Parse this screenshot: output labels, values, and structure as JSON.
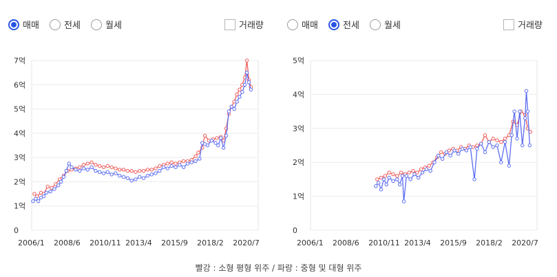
{
  "panels": [
    {
      "options": [
        {
          "label": "매매",
          "selected": true
        },
        {
          "label": "전세",
          "selected": false
        },
        {
          "label": "월세",
          "selected": false
        }
      ],
      "volume_label": "거래량"
    },
    {
      "options": [
        {
          "label": "매매",
          "selected": false
        },
        {
          "label": "전세",
          "selected": true
        },
        {
          "label": "월세",
          "selected": false
        }
      ],
      "volume_label": "거래량"
    }
  ],
  "caption": "빨강 : 소형 평형 위주 / 파랑 : 중형 및 대형 위주",
  "colors": {
    "red": "#ef5b5b",
    "blue": "#5b6cf2",
    "grid": "#ececec"
  },
  "chart_data": [
    {
      "type": "line",
      "x_ticks": [
        "2006/1",
        "2008/6",
        "2010/11",
        "2013/4",
        "2015/9",
        "2018/2",
        "2020/7"
      ],
      "y_ticks": [
        "0",
        "1억",
        "2억",
        "3억",
        "4억",
        "5억",
        "6억",
        "7억"
      ],
      "ylim": [
        0,
        7
      ],
      "xlim": [
        2006.0,
        2023.0
      ],
      "grid": true,
      "series": [
        {
          "color": "red",
          "points": [
            [
              2006.2,
              1.5
            ],
            [
              2006.4,
              1.4
            ],
            [
              2006.7,
              1.55
            ],
            [
              2006.9,
              1.5
            ],
            [
              2007.2,
              1.8
            ],
            [
              2007.5,
              1.75
            ],
            [
              2007.8,
              1.9
            ],
            [
              2008.1,
              2.1
            ],
            [
              2008.4,
              2.25
            ],
            [
              2008.7,
              2.45
            ],
            [
              2009.0,
              2.5
            ],
            [
              2009.3,
              2.55
            ],
            [
              2009.6,
              2.6
            ],
            [
              2009.9,
              2.7
            ],
            [
              2010.2,
              2.75
            ],
            [
              2010.5,
              2.8
            ],
            [
              2010.8,
              2.7
            ],
            [
              2011.1,
              2.65
            ],
            [
              2011.4,
              2.6
            ],
            [
              2011.7,
              2.65
            ],
            [
              2012.0,
              2.6
            ],
            [
              2012.3,
              2.55
            ],
            [
              2012.6,
              2.5
            ],
            [
              2012.9,
              2.5
            ],
            [
              2013.2,
              2.45
            ],
            [
              2013.5,
              2.45
            ],
            [
              2013.8,
              2.4
            ],
            [
              2014.1,
              2.45
            ],
            [
              2014.4,
              2.45
            ],
            [
              2014.7,
              2.5
            ],
            [
              2015.0,
              2.5
            ],
            [
              2015.3,
              2.55
            ],
            [
              2015.6,
              2.65
            ],
            [
              2015.9,
              2.7
            ],
            [
              2016.2,
              2.75
            ],
            [
              2016.5,
              2.8
            ],
            [
              2016.8,
              2.75
            ],
            [
              2017.1,
              2.8
            ],
            [
              2017.4,
              2.85
            ],
            [
              2017.7,
              2.85
            ],
            [
              2018.0,
              2.9
            ],
            [
              2018.3,
              3.05
            ],
            [
              2018.5,
              3.2
            ],
            [
              2018.8,
              3.4
            ],
            [
              2019.0,
              3.9
            ],
            [
              2019.3,
              3.7
            ],
            [
              2019.6,
              3.75
            ],
            [
              2019.9,
              3.8
            ],
            [
              2020.2,
              3.85
            ],
            [
              2020.4,
              3.7
            ],
            [
              2020.6,
              4.2
            ],
            [
              2020.8,
              4.8
            ],
            [
              2021.0,
              5.1
            ],
            [
              2021.2,
              5.3
            ],
            [
              2021.4,
              5.6
            ],
            [
              2021.6,
              5.8
            ],
            [
              2021.8,
              6.0
            ],
            [
              2022.0,
              6.3
            ],
            [
              2022.15,
              7.0
            ],
            [
              2022.3,
              6.2
            ],
            [
              2022.45,
              5.9
            ]
          ]
        },
        {
          "color": "blue",
          "points": [
            [
              2006.1,
              1.2
            ],
            [
              2006.3,
              1.3
            ],
            [
              2006.5,
              1.2
            ],
            [
              2006.7,
              1.35
            ],
            [
              2006.9,
              1.4
            ],
            [
              2007.1,
              1.55
            ],
            [
              2007.4,
              1.6
            ],
            [
              2007.7,
              1.7
            ],
            [
              2008.0,
              1.85
            ],
            [
              2008.2,
              2.0
            ],
            [
              2008.4,
              2.2
            ],
            [
              2008.6,
              2.45
            ],
            [
              2008.8,
              2.75
            ],
            [
              2009.0,
              2.6
            ],
            [
              2009.3,
              2.5
            ],
            [
              2009.6,
              2.45
            ],
            [
              2009.9,
              2.55
            ],
            [
              2010.2,
              2.5
            ],
            [
              2010.5,
              2.6
            ],
            [
              2010.8,
              2.45
            ],
            [
              2011.1,
              2.4
            ],
            [
              2011.4,
              2.35
            ],
            [
              2011.7,
              2.4
            ],
            [
              2012.0,
              2.3
            ],
            [
              2012.3,
              2.35
            ],
            [
              2012.6,
              2.25
            ],
            [
              2012.9,
              2.2
            ],
            [
              2013.2,
              2.15
            ],
            [
              2013.5,
              2.05
            ],
            [
              2013.8,
              2.1
            ],
            [
              2014.1,
              2.2
            ],
            [
              2014.4,
              2.15
            ],
            [
              2014.7,
              2.25
            ],
            [
              2015.0,
              2.3
            ],
            [
              2015.3,
              2.35
            ],
            [
              2015.6,
              2.45
            ],
            [
              2015.9,
              2.6
            ],
            [
              2016.2,
              2.55
            ],
            [
              2016.5,
              2.65
            ],
            [
              2016.8,
              2.6
            ],
            [
              2017.1,
              2.7
            ],
            [
              2017.4,
              2.6
            ],
            [
              2017.7,
              2.75
            ],
            [
              2018.0,
              2.8
            ],
            [
              2018.3,
              2.85
            ],
            [
              2018.6,
              2.95
            ],
            [
              2018.8,
              3.6
            ],
            [
              2019.0,
              3.55
            ],
            [
              2019.2,
              3.5
            ],
            [
              2019.5,
              3.7
            ],
            [
              2019.8,
              3.6
            ],
            [
              2020.0,
              3.5
            ],
            [
              2020.2,
              3.8
            ],
            [
              2020.4,
              3.4
            ],
            [
              2020.6,
              3.9
            ],
            [
              2020.8,
              4.9
            ],
            [
              2021.0,
              5.1
            ],
            [
              2021.2,
              5.0
            ],
            [
              2021.4,
              5.3
            ],
            [
              2021.6,
              5.5
            ],
            [
              2021.8,
              5.7
            ],
            [
              2022.0,
              6.0
            ],
            [
              2022.15,
              6.5
            ],
            [
              2022.3,
              6.1
            ],
            [
              2022.45,
              5.8
            ]
          ]
        }
      ]
    },
    {
      "type": "line",
      "x_ticks": [
        "2006/1",
        "2008/6",
        "2010/11",
        "2013/4",
        "2015/9",
        "2018/2",
        "2020/7"
      ],
      "y_ticks": [
        "0",
        "1억",
        "2억",
        "3억",
        "4억",
        "5억"
      ],
      "ylim": [
        0,
        5
      ],
      "xlim": [
        2006.0,
        2023.0
      ],
      "grid": true,
      "series": [
        {
          "color": "red",
          "points": [
            [
              2011.0,
              1.5
            ],
            [
              2011.3,
              1.55
            ],
            [
              2011.6,
              1.6
            ],
            [
              2011.9,
              1.7
            ],
            [
              2012.2,
              1.65
            ],
            [
              2012.5,
              1.6
            ],
            [
              2012.8,
              1.7
            ],
            [
              2013.1,
              1.65
            ],
            [
              2013.4,
              1.7
            ],
            [
              2013.7,
              1.75
            ],
            [
              2014.0,
              1.7
            ],
            [
              2014.3,
              1.8
            ],
            [
              2014.6,
              1.85
            ],
            [
              2014.9,
              1.9
            ],
            [
              2015.2,
              2.0
            ],
            [
              2015.5,
              2.15
            ],
            [
              2015.8,
              2.3
            ],
            [
              2016.1,
              2.25
            ],
            [
              2016.4,
              2.35
            ],
            [
              2016.7,
              2.4
            ],
            [
              2017.0,
              2.35
            ],
            [
              2017.3,
              2.45
            ],
            [
              2017.6,
              2.4
            ],
            [
              2017.9,
              2.5
            ],
            [
              2018.2,
              2.45
            ],
            [
              2018.5,
              2.5
            ],
            [
              2018.8,
              2.55
            ],
            [
              2019.1,
              2.8
            ],
            [
              2019.4,
              2.6
            ],
            [
              2019.7,
              2.7
            ],
            [
              2020.0,
              2.65
            ],
            [
              2020.3,
              2.6
            ],
            [
              2020.6,
              2.7
            ],
            [
              2020.9,
              2.8
            ],
            [
              2021.2,
              3.2
            ],
            [
              2021.5,
              3.1
            ],
            [
              2021.8,
              3.5
            ],
            [
              2022.1,
              3.4
            ],
            [
              2022.3,
              3.0
            ],
            [
              2022.5,
              2.9
            ]
          ]
        },
        {
          "color": "blue",
          "points": [
            [
              2010.9,
              1.3
            ],
            [
              2011.1,
              1.4
            ],
            [
              2011.3,
              1.2
            ],
            [
              2011.5,
              1.5
            ],
            [
              2011.7,
              1.35
            ],
            [
              2011.9,
              1.55
            ],
            [
              2012.2,
              1.45
            ],
            [
              2012.5,
              1.5
            ],
            [
              2012.7,
              1.35
            ],
            [
              2012.9,
              1.6
            ],
            [
              2013.0,
              0.85
            ],
            [
              2013.2,
              1.6
            ],
            [
              2013.5,
              1.5
            ],
            [
              2013.8,
              1.65
            ],
            [
              2014.1,
              1.55
            ],
            [
              2014.4,
              1.7
            ],
            [
              2014.7,
              1.8
            ],
            [
              2015.0,
              1.75
            ],
            [
              2015.3,
              2.0
            ],
            [
              2015.6,
              2.2
            ],
            [
              2015.9,
              2.1
            ],
            [
              2016.2,
              2.3
            ],
            [
              2016.5,
              2.2
            ],
            [
              2016.8,
              2.35
            ],
            [
              2017.1,
              2.25
            ],
            [
              2017.4,
              2.4
            ],
            [
              2017.7,
              2.35
            ],
            [
              2018.0,
              2.45
            ],
            [
              2018.3,
              1.5
            ],
            [
              2018.5,
              2.4
            ],
            [
              2018.8,
              2.55
            ],
            [
              2019.1,
              2.3
            ],
            [
              2019.4,
              2.6
            ],
            [
              2019.7,
              2.45
            ],
            [
              2020.0,
              2.5
            ],
            [
              2020.3,
              2.0
            ],
            [
              2020.6,
              2.6
            ],
            [
              2020.9,
              1.9
            ],
            [
              2021.1,
              2.8
            ],
            [
              2021.3,
              3.5
            ],
            [
              2021.5,
              2.7
            ],
            [
              2021.7,
              3.5
            ],
            [
              2021.9,
              2.5
            ],
            [
              2022.1,
              3.3
            ],
            [
              2022.2,
              4.1
            ],
            [
              2022.3,
              3.5
            ],
            [
              2022.45,
              2.5
            ]
          ]
        }
      ]
    }
  ]
}
